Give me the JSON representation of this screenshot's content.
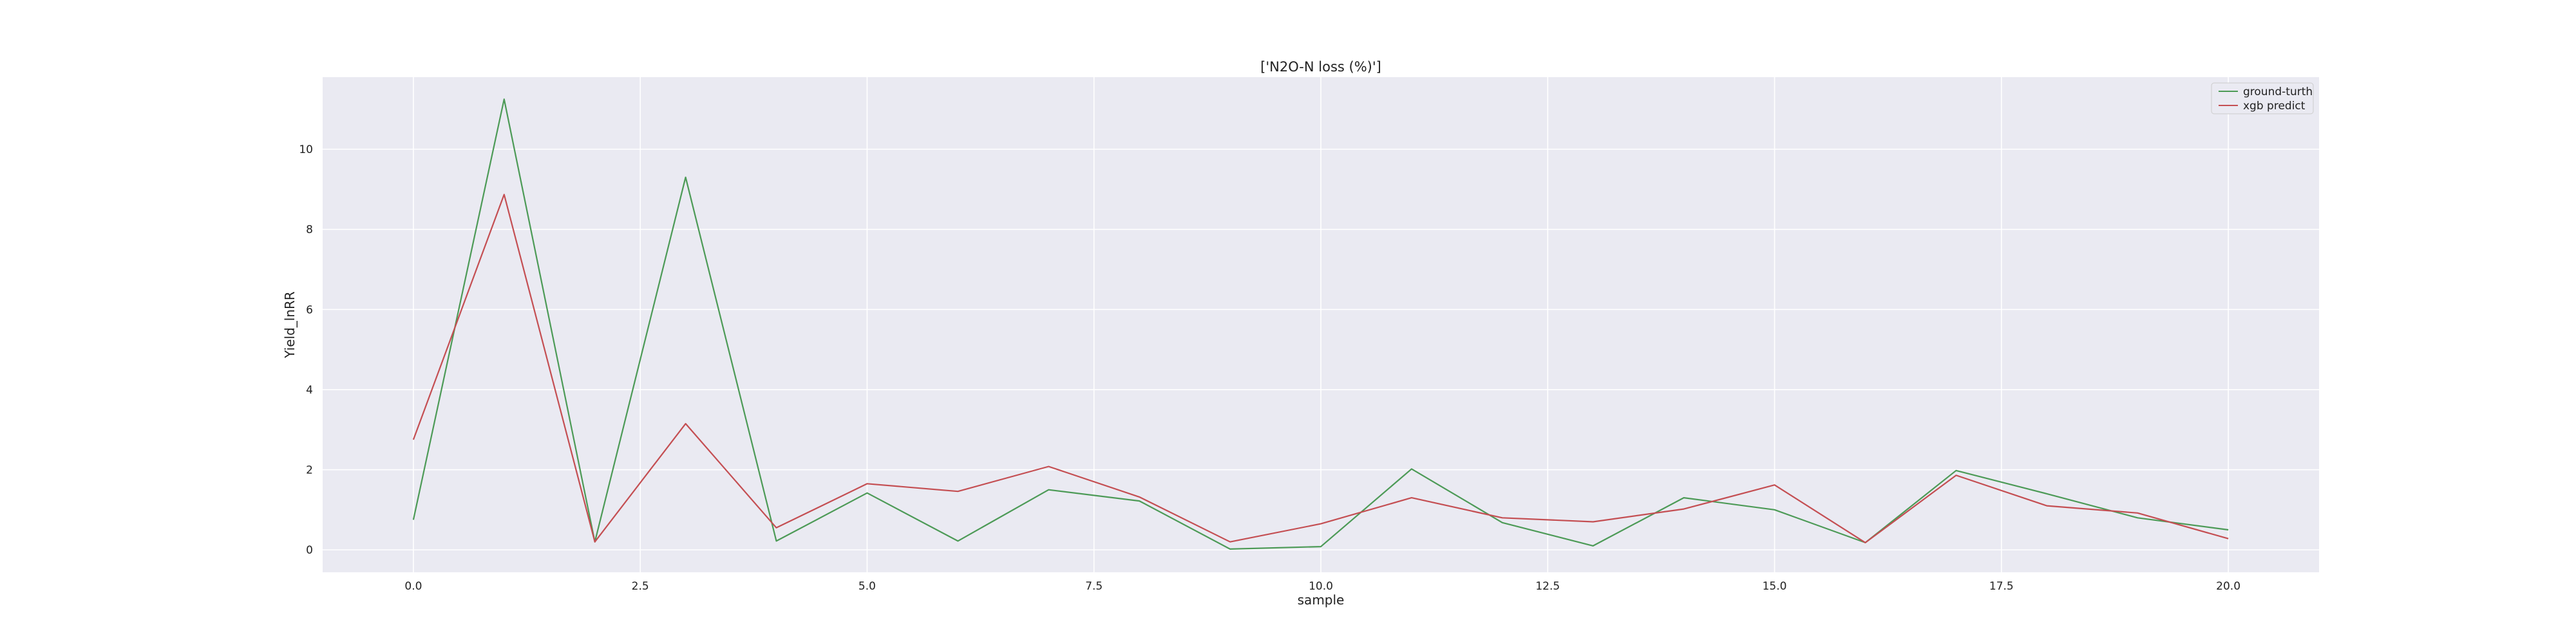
{
  "chart_data": {
    "type": "line",
    "title": "['N2O-N loss (%)']",
    "xlabel": "sample",
    "ylabel": "Yield_lnRR",
    "xlim": [
      -1,
      21
    ],
    "ylim": [
      -0.56,
      11.8
    ],
    "x_ticks": [
      0.0,
      2.5,
      5.0,
      7.5,
      10.0,
      12.5,
      15.0,
      17.5,
      20.0
    ],
    "x_tick_labels": [
      "0.0",
      "2.5",
      "5.0",
      "7.5",
      "10.0",
      "12.5",
      "15.0",
      "17.5",
      "20.0"
    ],
    "y_ticks": [
      0,
      2,
      4,
      6,
      8,
      10
    ],
    "y_tick_labels": [
      "0",
      "2",
      "4",
      "6",
      "8",
      "10"
    ],
    "grid": true,
    "legend_position": "top-right",
    "x": [
      0,
      1,
      2,
      3,
      4,
      5,
      6,
      7,
      8,
      9,
      10,
      11,
      12,
      13,
      14,
      15,
      16,
      17,
      18,
      19,
      20
    ],
    "series": [
      {
        "name": "ground-turth",
        "color": "#4c9a56",
        "values": [
          0.75,
          11.25,
          0.2,
          9.3,
          0.22,
          1.42,
          0.22,
          1.5,
          1.22,
          0.02,
          0.08,
          2.02,
          0.68,
          0.1,
          1.3,
          1.0,
          0.18,
          1.98,
          1.4,
          0.8,
          0.5
        ]
      },
      {
        "name": "xgb predict",
        "color": "#c44e52",
        "values": [
          2.75,
          8.87,
          0.2,
          3.15,
          0.55,
          1.65,
          1.46,
          2.08,
          1.32,
          0.2,
          0.65,
          1.3,
          0.8,
          0.7,
          1.02,
          1.62,
          0.18,
          1.86,
          1.1,
          0.92,
          0.28
        ]
      }
    ]
  }
}
